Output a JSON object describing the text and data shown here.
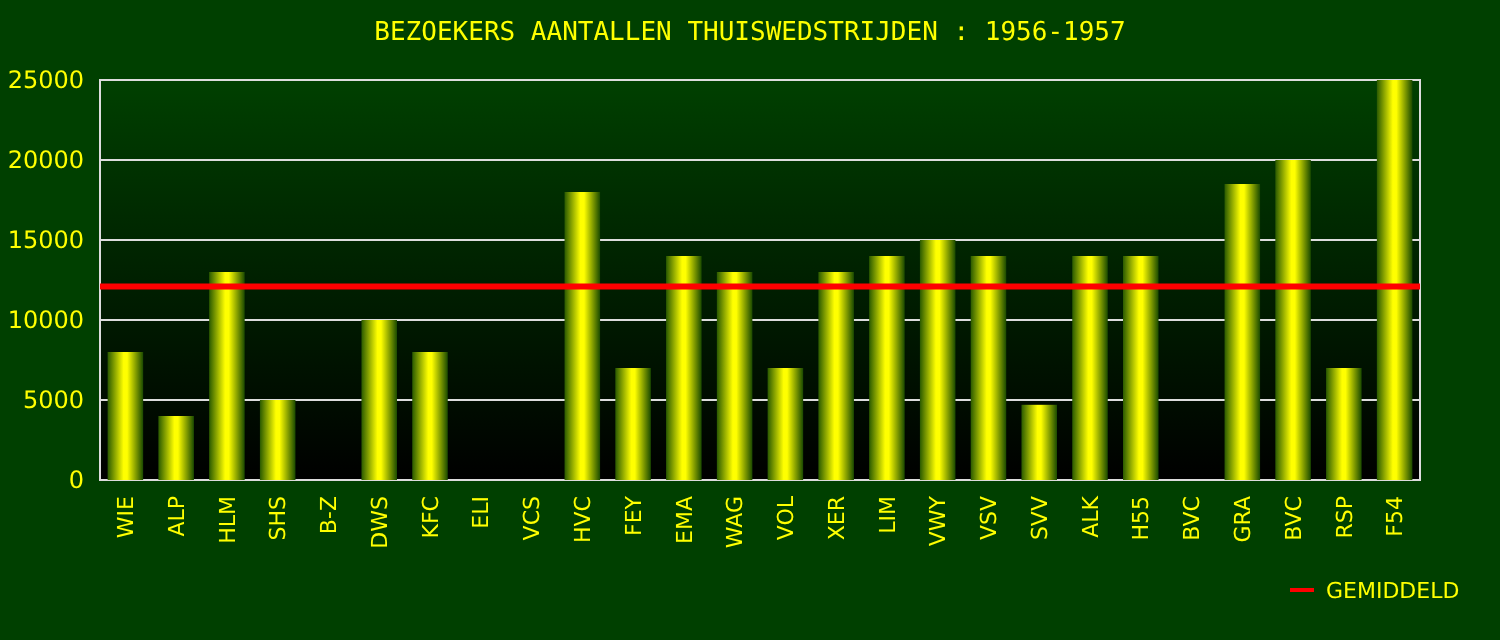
{
  "chart_data": {
    "type": "bar",
    "title": "BEZOEKERS AANTALLEN THUISWEDSTRIJDEN : 1956-1957",
    "categories": [
      "WIE",
      "ALP",
      "HLM",
      "SHS",
      "B-Z",
      "DWS",
      "KFC",
      "ELI",
      "VCS",
      "HVC",
      "FEY",
      "EMA",
      "WAG",
      "VOL",
      "XER",
      "LIM",
      "VWY",
      "VSV",
      "SVV",
      "ALK",
      "H55",
      "BVC",
      "GRA",
      "BVC",
      "RSP",
      "F54"
    ],
    "values": [
      8000,
      4000,
      13000,
      5000,
      null,
      10000,
      8000,
      null,
      null,
      18000,
      7000,
      14000,
      13000,
      7000,
      13000,
      14000,
      15000,
      14000,
      4700,
      14000,
      14000,
      null,
      18500,
      20000,
      7000,
      25000
    ],
    "color": "#ffff00",
    "ylim": [
      0,
      25000
    ],
    "yticks": [
      0,
      5000,
      10000,
      15000,
      20000,
      25000
    ],
    "grid": "y",
    "ref_lines": [
      {
        "axis": "y",
        "value": 12100,
        "label": "GEMIDDELD",
        "color": "#ff0000"
      }
    ],
    "legend": "bottom right"
  }
}
